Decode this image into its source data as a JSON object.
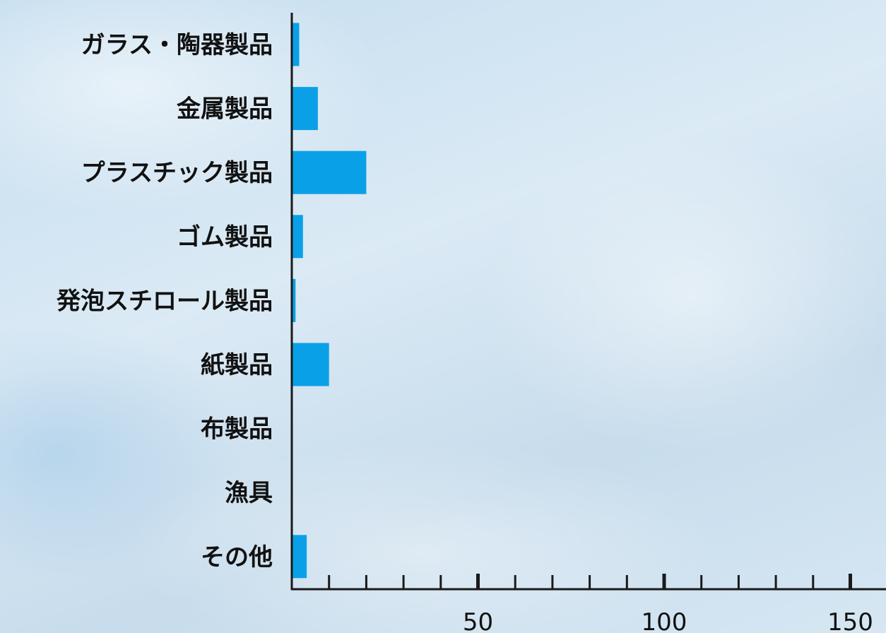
{
  "chart_data": {
    "type": "bar",
    "orientation": "horizontal",
    "categories": [
      "ガラス・陶器製品",
      "金属製品",
      "プラスチック製品",
      "ゴム製品",
      "発泡スチロール製品",
      "紙製品",
      "布製品",
      "漁具",
      "その他"
    ],
    "values": [
      2,
      7,
      20,
      3,
      1,
      10,
      0,
      0,
      4
    ],
    "xlim": [
      0,
      160
    ],
    "xticks_major": [
      50,
      100,
      150
    ],
    "xtick_minor_step": 10,
    "xtick_labels": [
      "50",
      "100",
      "150"
    ],
    "bar_color": "#0aa0e8",
    "axis_color": "#1a1a1a",
    "label_color": "#111111",
    "title": "",
    "xlabel": "",
    "ylabel": ""
  }
}
